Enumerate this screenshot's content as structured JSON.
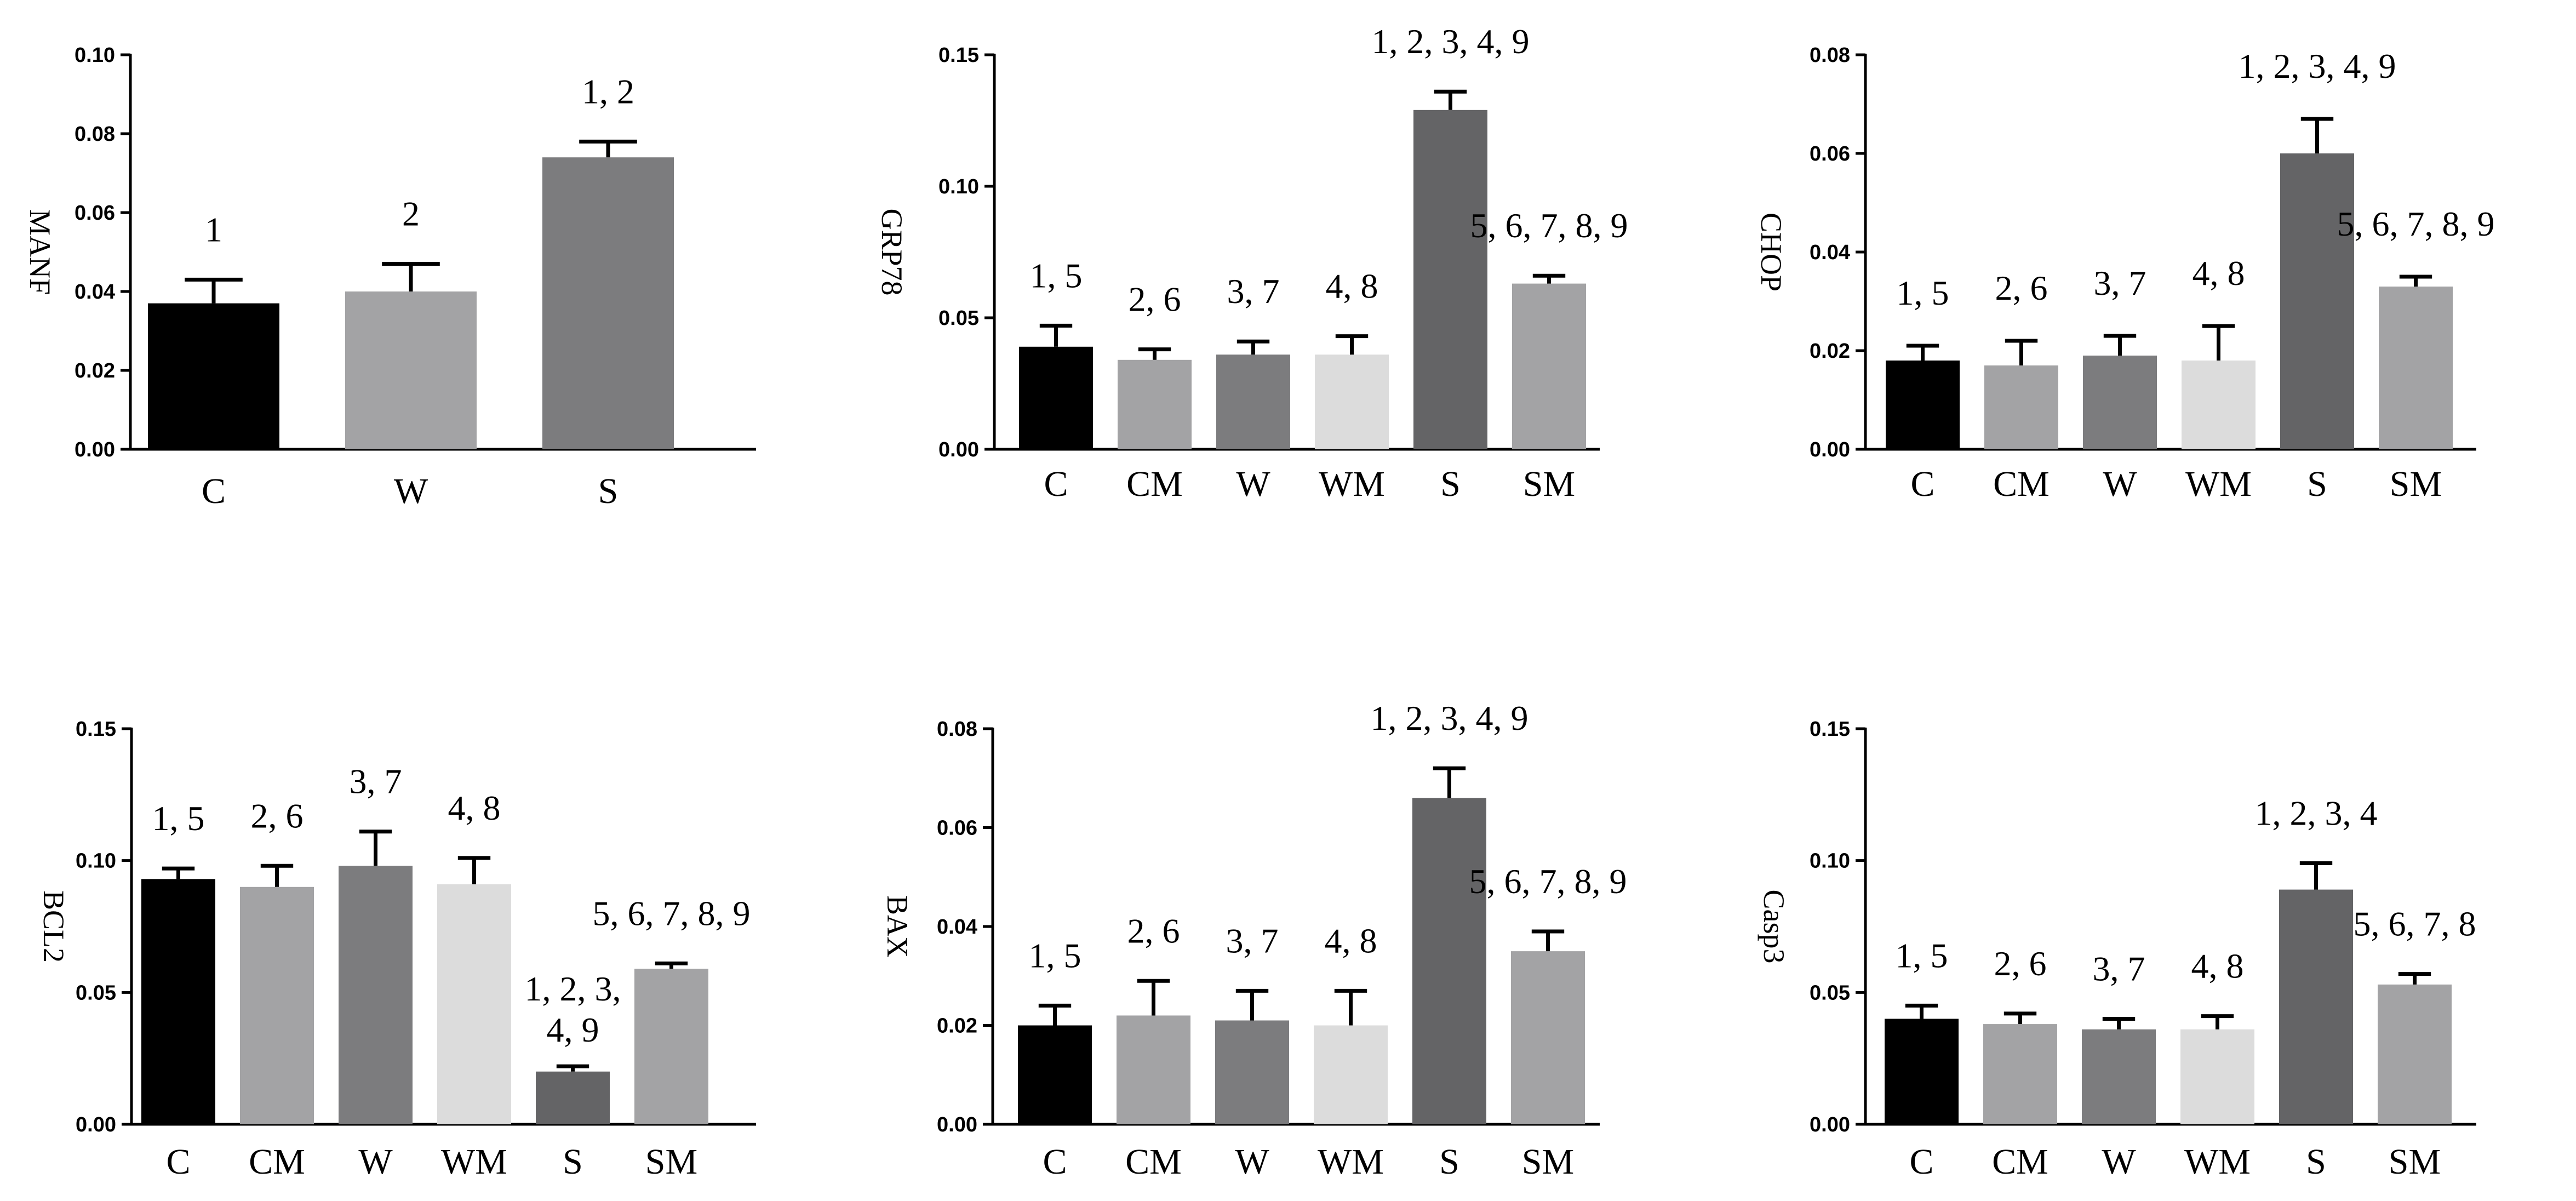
{
  "chart_data": [
    {
      "type": "bar",
      "ylabel": "MANF",
      "ylim": [
        0,
        0.1
      ],
      "yticks": [
        "0.00",
        "0.02",
        "0.04",
        "0.06",
        "0.08",
        "0.10"
      ],
      "categories": [
        "C",
        "W",
        "S"
      ],
      "values": [
        0.037,
        0.04,
        0.074
      ],
      "errors": [
        0.006,
        0.007,
        0.004
      ],
      "annotations": [
        "1",
        "2",
        "1, 2"
      ],
      "colors": [
        "#000000",
        "#a3a3a5",
        "#7c7c7e"
      ]
    },
    {
      "type": "bar",
      "ylabel": "GRP78",
      "ylim": [
        0,
        0.15
      ],
      "yticks": [
        "0.00",
        "0.05",
        "0.10",
        "0.15"
      ],
      "categories": [
        "C",
        "CM",
        "W",
        "WM",
        "S",
        "SM"
      ],
      "values": [
        0.039,
        0.034,
        0.036,
        0.036,
        0.129,
        0.063
      ],
      "errors": [
        0.008,
        0.004,
        0.005,
        0.007,
        0.007,
        0.003
      ],
      "annotations": [
        "1, 5",
        "2, 6",
        "3, 7",
        "4, 8",
        "1, 2, 3, 4, 9",
        "5, 6, 7, 8, 9"
      ],
      "colors": [
        "#000000",
        "#a3a3a5",
        "#7c7c7e",
        "#dcdcdc",
        "#646466",
        "#a3a3a5"
      ]
    },
    {
      "type": "bar",
      "ylabel": "CHOP",
      "ylim": [
        0,
        0.08
      ],
      "yticks": [
        "0.00",
        "0.02",
        "0.04",
        "0.06",
        "0.08"
      ],
      "categories": [
        "C",
        "CM",
        "W",
        "WM",
        "S",
        "SM"
      ],
      "values": [
        0.018,
        0.017,
        0.019,
        0.018,
        0.06,
        0.033
      ],
      "errors": [
        0.003,
        0.005,
        0.004,
        0.007,
        0.007,
        0.002
      ],
      "annotations": [
        "1, 5",
        "2, 6",
        "3, 7",
        "4, 8",
        "1, 2, 3, 4, 9",
        "5, 6, 7, 8, 9"
      ],
      "colors": [
        "#000000",
        "#a3a3a5",
        "#7c7c7e",
        "#dcdcdc",
        "#646466",
        "#a3a3a5"
      ]
    },
    {
      "type": "bar",
      "ylabel": "BCL2",
      "ylim": [
        0,
        0.15
      ],
      "yticks": [
        "0.00",
        "0.05",
        "0.10",
        "0.15"
      ],
      "categories": [
        "C",
        "CM",
        "W",
        "WM",
        "S",
        "SM"
      ],
      "values": [
        0.093,
        0.09,
        0.098,
        0.091,
        0.02,
        0.059
      ],
      "errors": [
        0.004,
        0.008,
        0.013,
        0.01,
        0.002,
        0.002
      ],
      "annotations": [
        "1, 5",
        "2, 6",
        "3, 7",
        "4, 8",
        "1, 2, 3,",
        "5, 6, 7, 8, 9"
      ],
      "annotation_second_lines": [
        "",
        "",
        "",
        "",
        "4, 9",
        ""
      ],
      "colors": [
        "#000000",
        "#a3a3a5",
        "#7c7c7e",
        "#dcdcdc",
        "#646466",
        "#a3a3a5"
      ]
    },
    {
      "type": "bar",
      "ylabel": "BAX",
      "ylim": [
        0,
        0.08
      ],
      "yticks": [
        "0.00",
        "0.02",
        "0.04",
        "0.06",
        "0.08"
      ],
      "categories": [
        "C",
        "CM",
        "W",
        "WM",
        "S",
        "SM"
      ],
      "values": [
        0.02,
        0.022,
        0.021,
        0.02,
        0.066,
        0.035
      ],
      "errors": [
        0.004,
        0.007,
        0.006,
        0.007,
        0.006,
        0.004
      ],
      "annotations": [
        "1, 5",
        "2, 6",
        "3, 7",
        "4, 8",
        "1, 2, 3, 4, 9",
        "5, 6, 7, 8, 9"
      ],
      "colors": [
        "#000000",
        "#a3a3a5",
        "#7c7c7e",
        "#dcdcdc",
        "#646466",
        "#a3a3a5"
      ]
    },
    {
      "type": "bar",
      "ylabel": "Casp3",
      "ylim": [
        0,
        0.15
      ],
      "yticks": [
        "0.00",
        "0.05",
        "0.10",
        "0.15"
      ],
      "categories": [
        "C",
        "CM",
        "W",
        "WM",
        "S",
        "SM"
      ],
      "values": [
        0.04,
        0.038,
        0.036,
        0.036,
        0.089,
        0.053
      ],
      "errors": [
        0.005,
        0.004,
        0.004,
        0.005,
        0.01,
        0.004
      ],
      "annotations": [
        "1, 5",
        "2, 6",
        "3, 7",
        "4, 8",
        "1, 2, 3, 4",
        "5, 6, 7, 8"
      ],
      "colors": [
        "#000000",
        "#a3a3a5",
        "#7c7c7e",
        "#dcdcdc",
        "#646466",
        "#a3a3a5"
      ]
    }
  ]
}
